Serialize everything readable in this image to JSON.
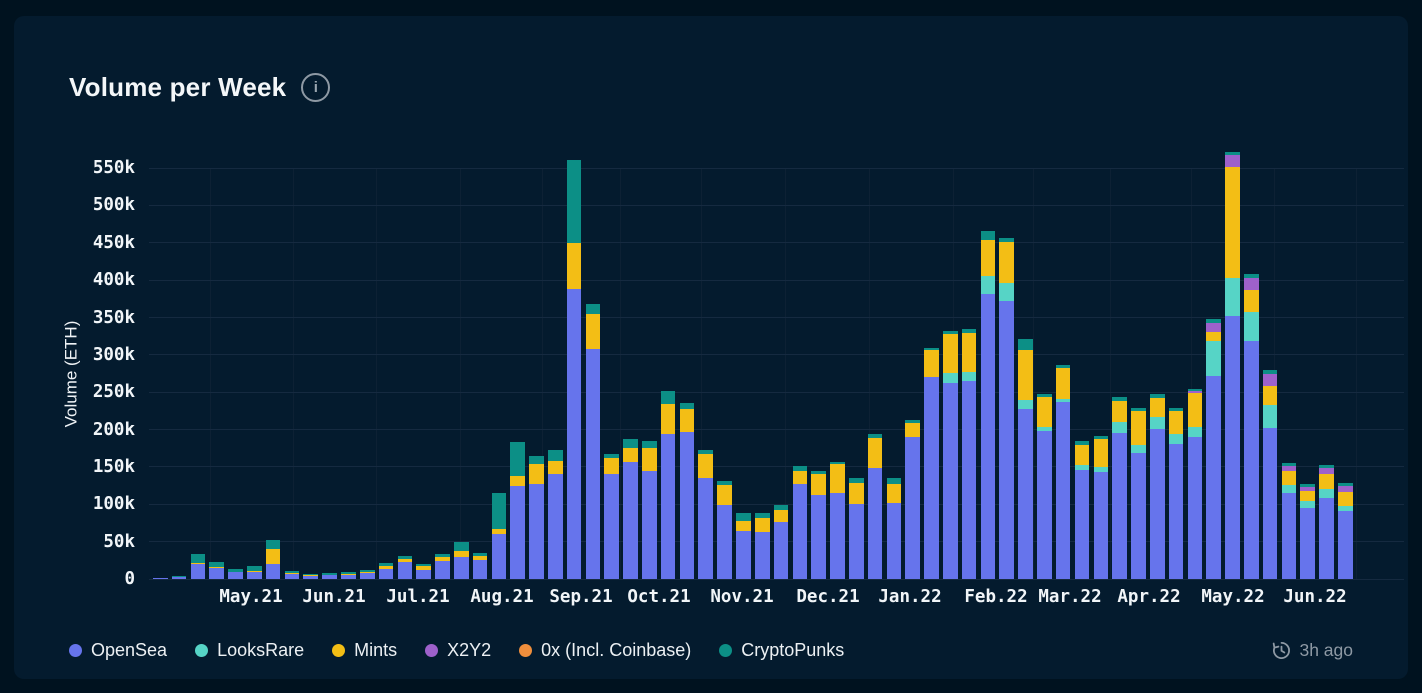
{
  "header": {
    "title": "Volume per Week"
  },
  "footer": {
    "updated_label": "3h ago"
  },
  "icons": {
    "info": "i",
    "updated": "clock-history"
  },
  "theme": {
    "page_bg": "#00121F",
    "card_bg": "#041B2E",
    "gridline": "#152A40",
    "text": "#F1F5F8",
    "muted_text": "#8E99A4"
  },
  "chart_data": {
    "type": "bar",
    "stacked": true,
    "title": "Volume per Week",
    "ylabel": "Volume (ETH)",
    "unit": "ETH",
    "values_scale": "thousands of ETH per weekly bar",
    "ylim": [
      0,
      550000
    ],
    "grid": "horizontal",
    "legend_position": "bottom",
    "yticks": [
      "0",
      "50k",
      "100k",
      "150k",
      "200k",
      "250k",
      "300k",
      "350k",
      "400k",
      "450k",
      "500k",
      "550k"
    ],
    "x_month_labels": [
      "May.21",
      "Jun.21",
      "Jul.21",
      "Aug.21",
      "Sep.21",
      "Oct.21",
      "Nov.21",
      "Dec.21",
      "Jan.22",
      "Feb.22",
      "Mar.22",
      "Apr.22",
      "May.22",
      "Jun.22"
    ],
    "series": [
      {
        "name": "OpenSea",
        "color": "#6674EC"
      },
      {
        "name": "LooksRare",
        "color": "#56D4C6"
      },
      {
        "name": "Mints",
        "color": "#F3BE15"
      },
      {
        "name": "X2Y2",
        "color": "#9E61CB"
      },
      {
        "name": "0x (Incl. Coinbase)",
        "color": "#EF8E3C"
      },
      {
        "name": "CryptoPunks",
        "color": "#0C8F86"
      }
    ],
    "weeks_k_order": [
      "OpenSea",
      "LooksRare",
      "Mints",
      "X2Y2",
      "0x (Incl. Coinbase)",
      "CryptoPunks"
    ],
    "weeks_k": [
      [
        1.5,
        0,
        0,
        0,
        0,
        0
      ],
      [
        2.5,
        0,
        0.5,
        0,
        0,
        1
      ],
      [
        20,
        0,
        1,
        0,
        0,
        13
      ],
      [
        15,
        0,
        1,
        0,
        0,
        7
      ],
      [
        9,
        0,
        1,
        0,
        0,
        4
      ],
      [
        10,
        0,
        1,
        0,
        0,
        6
      ],
      [
        20,
        0,
        20,
        0,
        0,
        12
      ],
      [
        7,
        0,
        1,
        0,
        0,
        3
      ],
      [
        4,
        0,
        1,
        0,
        0,
        2
      ],
      [
        5,
        0,
        1,
        0,
        0,
        2.5
      ],
      [
        6,
        0,
        1,
        0,
        0,
        3
      ],
      [
        8,
        0,
        1.5,
        0,
        0,
        3
      ],
      [
        14,
        0,
        3,
        0,
        0,
        4
      ],
      [
        23,
        0,
        4,
        0,
        0,
        4
      ],
      [
        12,
        0,
        5,
        0,
        0,
        3
      ],
      [
        24,
        0,
        6,
        0,
        0,
        4
      ],
      [
        30,
        0,
        8,
        0,
        0,
        11
      ],
      [
        25,
        0,
        6,
        0,
        0,
        4
      ],
      [
        60,
        0,
        7,
        0,
        0,
        48
      ],
      [
        124,
        0,
        14,
        0,
        0,
        45
      ],
      [
        127,
        0,
        27,
        0,
        0,
        10
      ],
      [
        140,
        0,
        18,
        0,
        0,
        15
      ],
      [
        388,
        0,
        61,
        0,
        0,
        112
      ],
      [
        308,
        0,
        47,
        0,
        0,
        13
      ],
      [
        141,
        0,
        21,
        0,
        0,
        5
      ],
      [
        156,
        0,
        20,
        0,
        0,
        11
      ],
      [
        145,
        0,
        30,
        0,
        0,
        10
      ],
      [
        194,
        0,
        40,
        0,
        0,
        18
      ],
      [
        197,
        0,
        31,
        0,
        0,
        8
      ],
      [
        135,
        0,
        32,
        0,
        0,
        6
      ],
      [
        99,
        0,
        27,
        0,
        0,
        5
      ],
      [
        64,
        0,
        14,
        0,
        0,
        10
      ],
      [
        63,
        0,
        18,
        0,
        0,
        8
      ],
      [
        76,
        0,
        16,
        0,
        0,
        7
      ],
      [
        127,
        0,
        18,
        0,
        0,
        6
      ],
      [
        112,
        0,
        29,
        0,
        0,
        3
      ],
      [
        115,
        0,
        39,
        0,
        0,
        3
      ],
      [
        101,
        0,
        27,
        0,
        0,
        7
      ],
      [
        148,
        0,
        41,
        0,
        0,
        5
      ],
      [
        102,
        0,
        25,
        0,
        0,
        8
      ],
      [
        190,
        0,
        19,
        0,
        0,
        4
      ],
      [
        270,
        0,
        36,
        0,
        0,
        3
      ],
      [
        262,
        14,
        52,
        0,
        0,
        4
      ],
      [
        265,
        12,
        52,
        0,
        0,
        6
      ],
      [
        382,
        24,
        48,
        0,
        0,
        12
      ],
      [
        372,
        24,
        55,
        0,
        0,
        6
      ],
      [
        228,
        12,
        67,
        0,
        0,
        14
      ],
      [
        198,
        6,
        40,
        0,
        0,
        3
      ],
      [
        237,
        4,
        42,
        0,
        0,
        4
      ],
      [
        146,
        6,
        28,
        0,
        0,
        5
      ],
      [
        143,
        7,
        37,
        0,
        0,
        5
      ],
      [
        195,
        15,
        28,
        0,
        0,
        6
      ],
      [
        168,
        12,
        45,
        0,
        0,
        4
      ],
      [
        201,
        16,
        25,
        0,
        0,
        5
      ],
      [
        181,
        13,
        31,
        0,
        0,
        4
      ],
      [
        190,
        13,
        46,
        2,
        0,
        3
      ],
      [
        272,
        47,
        11,
        13,
        0,
        5
      ],
      [
        352,
        51,
        149,
        16,
        0,
        4
      ],
      [
        318,
        39,
        30,
        16,
        0,
        5
      ],
      [
        202,
        31,
        25,
        17,
        0,
        5
      ],
      [
        115,
        11,
        18,
        7,
        0,
        4
      ],
      [
        95,
        10,
        13,
        5,
        0,
        4
      ],
      [
        109,
        11,
        20,
        8.5,
        0,
        3.5
      ],
      [
        91,
        7,
        19,
        8,
        0,
        3
      ]
    ]
  }
}
